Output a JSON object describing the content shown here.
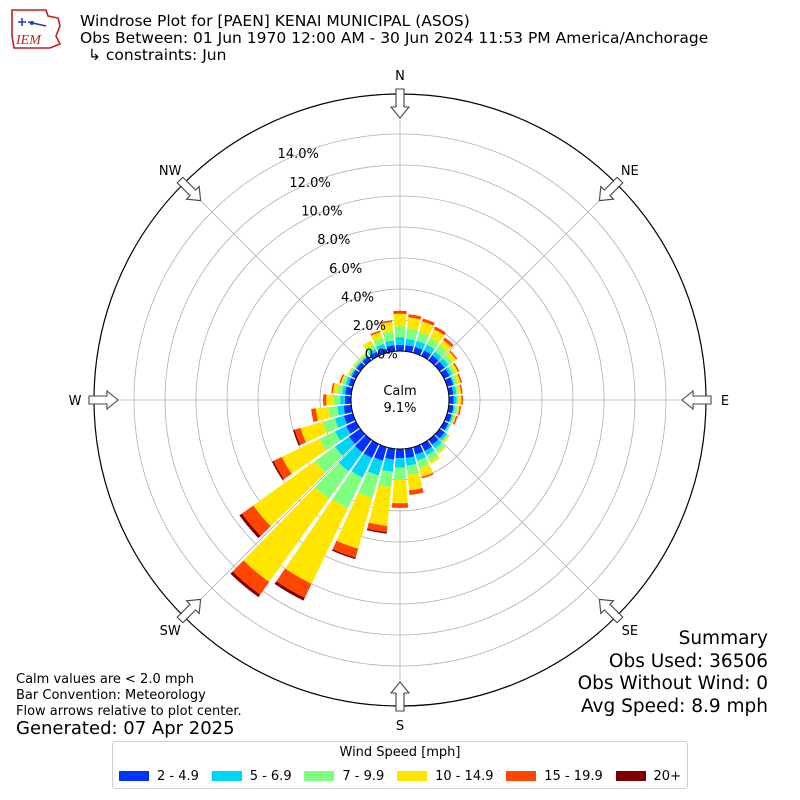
{
  "header": {
    "logo_text": "IEM",
    "title_line1": "Windrose Plot for [PAEN] KENAI MUNICIPAL (ASOS)",
    "title_line2": "Obs Between: 01 Jun 1970 12:00 AM - 30 Jun 2024 11:53 PM America/Anchorage",
    "title_line3": "↳ constraints: Jun"
  },
  "notes": {
    "calm_note": "Calm values are < 2.0 mph",
    "bar_convention": "Bar Convention: Meteorology",
    "flow_note": "Flow arrows relative to plot center.",
    "generated": "Generated: 07 Apr 2025"
  },
  "summary": {
    "heading": "Summary",
    "obs_used": "Obs Used: 36506",
    "obs_without_wind": "Obs Without Wind: 0",
    "avg_speed": "Avg Speed: 8.9 mph"
  },
  "chart_data": {
    "type": "windrose",
    "calm_label": "Calm",
    "calm_percent": "9.1%",
    "radial_ticks": [
      "0.0%",
      "2.0%",
      "4.0%",
      "6.0%",
      "8.0%",
      "10.0%",
      "12.0%",
      "14.0%"
    ],
    "radial_max_percent": 16,
    "compass_labels": [
      "N",
      "NE",
      "E",
      "SE",
      "S",
      "SW",
      "W",
      "NW"
    ],
    "legend_title": "Wind Speed [mph]",
    "speed_bins": [
      {
        "label": "2 - 4.9",
        "color": "#0033ff"
      },
      {
        "label": "5 - 6.9",
        "color": "#00d5f5"
      },
      {
        "label": "7 - 9.9",
        "color": "#7fff7f"
      },
      {
        "label": "10 - 14.9",
        "color": "#ffe600"
      },
      {
        "label": "15 - 19.9",
        "color": "#ff4500"
      },
      {
        "label": "20+",
        "color": "#7f0000"
      }
    ],
    "directions_deg": [
      0,
      10,
      20,
      30,
      40,
      50,
      60,
      70,
      80,
      90,
      100,
      110,
      120,
      130,
      140,
      150,
      160,
      170,
      180,
      190,
      200,
      210,
      220,
      230,
      240,
      250,
      260,
      270,
      280,
      290,
      300,
      310,
      320,
      330,
      340,
      350
    ],
    "cumulative_percent": [
      [
        0.4,
        0.9,
        1.6,
        2.4,
        2.6,
        2.6
      ],
      [
        0.4,
        0.8,
        1.5,
        2.2,
        2.4,
        2.4
      ],
      [
        0.4,
        0.8,
        1.4,
        2.1,
        2.3,
        2.3
      ],
      [
        0.4,
        0.8,
        1.3,
        1.9,
        2.1,
        2.1
      ],
      [
        0.4,
        0.7,
        1.2,
        1.6,
        1.8,
        1.8
      ],
      [
        0.4,
        0.7,
        1.0,
        1.3,
        1.4,
        1.4
      ],
      [
        0.4,
        0.6,
        0.8,
        1.0,
        1.1,
        1.1
      ],
      [
        0.4,
        0.5,
        0.7,
        0.9,
        1.0,
        1.0
      ],
      [
        0.3,
        0.5,
        0.6,
        0.8,
        0.9,
        0.9
      ],
      [
        0.3,
        0.5,
        0.6,
        0.8,
        0.9,
        0.9
      ],
      [
        0.3,
        0.4,
        0.6,
        0.7,
        0.8,
        0.8
      ],
      [
        0.3,
        0.4,
        0.5,
        0.6,
        0.7,
        0.7
      ],
      [
        0.3,
        0.4,
        0.5,
        0.5,
        0.5,
        0.5
      ],
      [
        0.4,
        0.6,
        0.7,
        0.8,
        0.8,
        0.8
      ],
      [
        0.4,
        0.7,
        1.0,
        1.1,
        1.1,
        1.1
      ],
      [
        0.5,
        0.8,
        1.2,
        1.4,
        1.4,
        1.4
      ],
      [
        0.5,
        0.9,
        1.4,
        2.0,
        2.1,
        2.1
      ],
      [
        0.6,
        1.1,
        1.7,
        2.7,
        3.0,
        3.0
      ],
      [
        0.6,
        1.2,
        2.0,
        3.5,
        3.8,
        3.8
      ],
      [
        0.7,
        1.5,
        2.5,
        5.0,
        5.4,
        5.5
      ],
      [
        0.9,
        1.9,
        3.4,
        6.8,
        7.4,
        7.5
      ],
      [
        1.0,
        2.4,
        4.6,
        10.0,
        11.0,
        11.2
      ],
      [
        1.0,
        2.5,
        4.7,
        11.3,
        12.3,
        12.5
      ],
      [
        0.9,
        2.0,
        3.6,
        8.5,
        9.4,
        9.6
      ],
      [
        0.7,
        1.5,
        2.6,
        5.3,
        5.9,
        6.0
      ],
      [
        0.6,
        1.2,
        2.0,
        3.5,
        3.9,
        4.0
      ],
      [
        0.5,
        0.9,
        1.5,
        2.3,
        2.6,
        2.6
      ],
      [
        0.4,
        0.7,
        1.1,
        1.6,
        1.8,
        1.8
      ],
      [
        0.4,
        0.6,
        0.9,
        1.2,
        1.3,
        1.3
      ],
      [
        0.3,
        0.5,
        0.7,
        0.8,
        0.9,
        0.9
      ],
      [
        0.3,
        0.4,
        0.5,
        0.6,
        0.6,
        0.6
      ],
      [
        0.3,
        0.4,
        0.5,
        0.6,
        0.6,
        0.6
      ],
      [
        0.3,
        0.4,
        0.5,
        0.6,
        0.6,
        0.6
      ],
      [
        0.3,
        0.5,
        0.8,
        1.1,
        1.1,
        1.1
      ],
      [
        0.3,
        0.6,
        1.0,
        1.4,
        1.5,
        1.5
      ],
      [
        0.4,
        0.7,
        1.3,
        1.9,
        2.0,
        2.0
      ]
    ]
  }
}
